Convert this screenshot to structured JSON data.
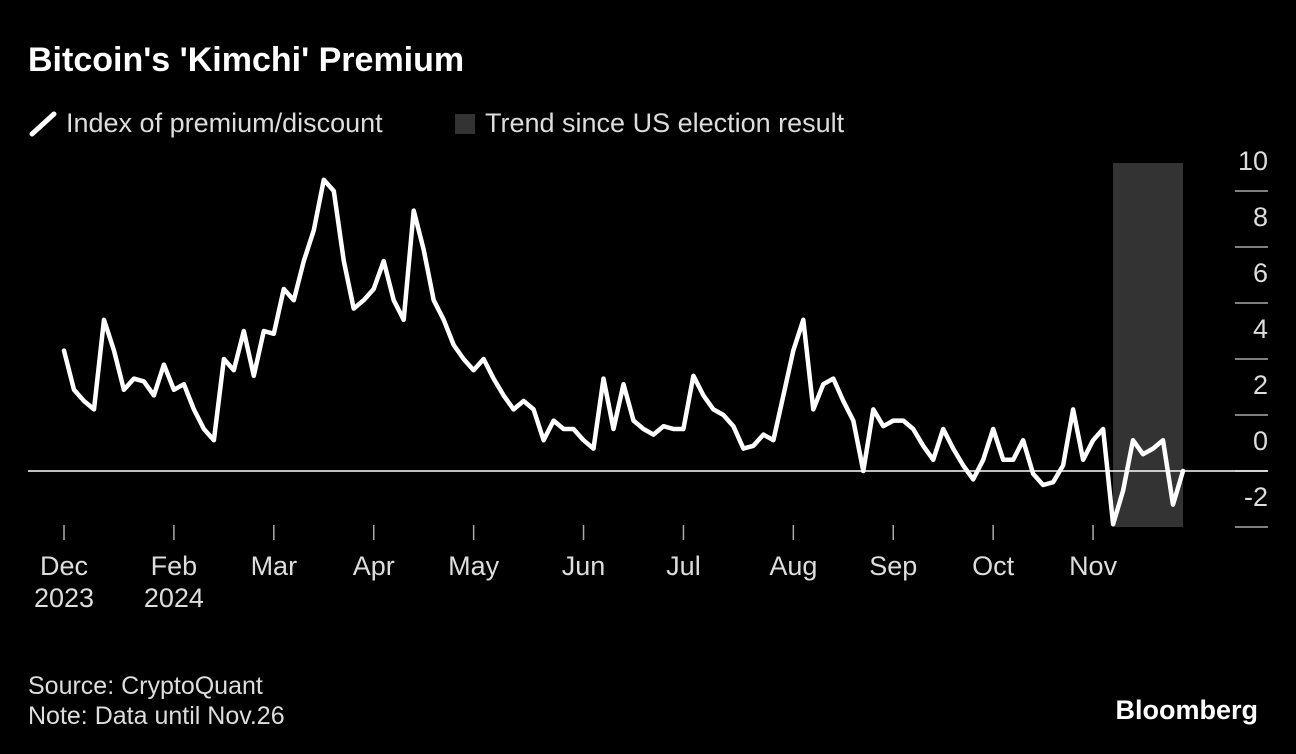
{
  "chart_data": {
    "type": "line",
    "title": "Bitcoin's 'Kimchi' Premium",
    "categories": [
      "Dec 2023",
      null,
      null,
      null,
      null,
      null,
      null,
      null,
      null,
      null,
      null,
      "Feb 2024",
      null,
      null,
      null,
      null,
      null,
      null,
      null,
      null,
      null,
      "Mar",
      null,
      null,
      null,
      null,
      null,
      null,
      null,
      null,
      null,
      "Apr",
      null,
      null,
      null,
      null,
      null,
      null,
      null,
      null,
      null,
      "May",
      null,
      null,
      null,
      null,
      null,
      null,
      null,
      null,
      null,
      null,
      "Jun",
      null,
      null,
      null,
      null,
      null,
      null,
      null,
      null,
      null,
      "Jul",
      null,
      null,
      null,
      null,
      null,
      null,
      null,
      null,
      null,
      null,
      "Aug",
      null,
      null,
      null,
      null,
      null,
      null,
      null,
      null,
      null,
      "Sep",
      null,
      null,
      null,
      null,
      null,
      null,
      null,
      null,
      null,
      "Oct",
      null,
      null,
      null,
      null,
      null,
      null,
      null,
      null,
      null,
      "Nov",
      null,
      null,
      null,
      null,
      null,
      null,
      null,
      null,
      null
    ],
    "series": [
      {
        "name": "Index of premium/discount",
        "color": "#ffffff",
        "values": [
          4.3,
          2.9,
          2.5,
          2.2,
          5.4,
          4.3,
          2.9,
          3.3,
          3.2,
          2.7,
          3.8,
          2.9,
          3.1,
          2.2,
          1.5,
          1.1,
          4.0,
          3.6,
          5.0,
          3.4,
          5.0,
          4.9,
          6.5,
          6.1,
          7.5,
          8.6,
          10.4,
          10.0,
          7.5,
          5.8,
          6.1,
          6.5,
          7.5,
          6.1,
          5.4,
          9.3,
          7.9,
          6.1,
          5.4,
          4.5,
          4.0,
          3.6,
          4.0,
          3.3,
          2.7,
          2.2,
          2.5,
          2.2,
          1.1,
          1.8,
          1.5,
          1.5,
          1.1,
          0.8,
          3.3,
          1.5,
          3.1,
          1.8,
          1.5,
          1.3,
          1.6,
          1.5,
          1.5,
          3.4,
          2.7,
          2.2,
          2.0,
          1.6,
          0.8,
          0.9,
          1.3,
          1.1,
          2.7,
          4.3,
          5.4,
          2.2,
          3.1,
          3.3,
          2.5,
          1.8,
          0,
          2.2,
          1.6,
          1.8,
          1.8,
          1.5,
          0.9,
          0.4,
          1.5,
          0.8,
          0.2,
          -0.3,
          0.4,
          1.5,
          0.4,
          0.4,
          1.1,
          -0.1,
          -0.5,
          -0.4,
          0.2,
          2.2,
          0.4,
          1.1,
          1.5,
          -1.9,
          -0.7,
          1.1,
          0.6,
          0.8,
          1.1,
          -1.2,
          0.0
        ]
      }
    ],
    "highlight": {
      "name": "Trend since US election result",
      "color": "#333333",
      "start": 105,
      "end": 112
    },
    "ylim": [
      -2,
      11
    ],
    "yticks": [
      10,
      8,
      6,
      4,
      2,
      0,
      -2
    ],
    "source": "Source: CryptoQuant",
    "note": "Note: Data until Nov.26",
    "brand": "Bloomberg"
  }
}
